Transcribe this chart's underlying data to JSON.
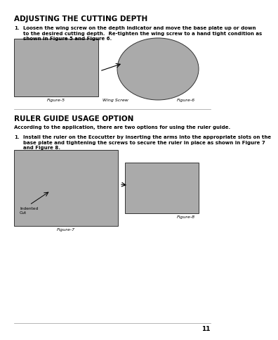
{
  "bg_color": "#ffffff",
  "title1": "ADJUSTING THE CUTTING DEPTH",
  "body1_num": "1.",
  "body1": "Loosen the wing screw on the depth indicator and move the base plate up or down\nto the desired cutting depth.  Re-tighten the wing screw to a hand tight condition as\nshown in Figure 5 and Figure 6.",
  "label_fig5": "Figure-5",
  "label_wingscrew": "Wing Screw",
  "label_fig6": "Figure-6",
  "title2": "RULER GUIDE USAGE OPTION",
  "body2": "According to the application, there are two options for using the ruler guide.",
  "body3_num": "1.",
  "body3": "Install the ruler on the Ecocutter by inserting the arms into the appropriate slots on the\nbase plate and tightening the screws to secure the ruler in place as shown in Figure 7\nand Figure 8.",
  "label_indented": "Indented\nCut",
  "label_fig7": "Figure-7",
  "label_fig8": "Figure-8",
  "page_num": "11",
  "title_fontsize": 7.5,
  "body_fontsize": 5.0,
  "label_fontsize": 4.2,
  "caption_fontsize": 4.5
}
